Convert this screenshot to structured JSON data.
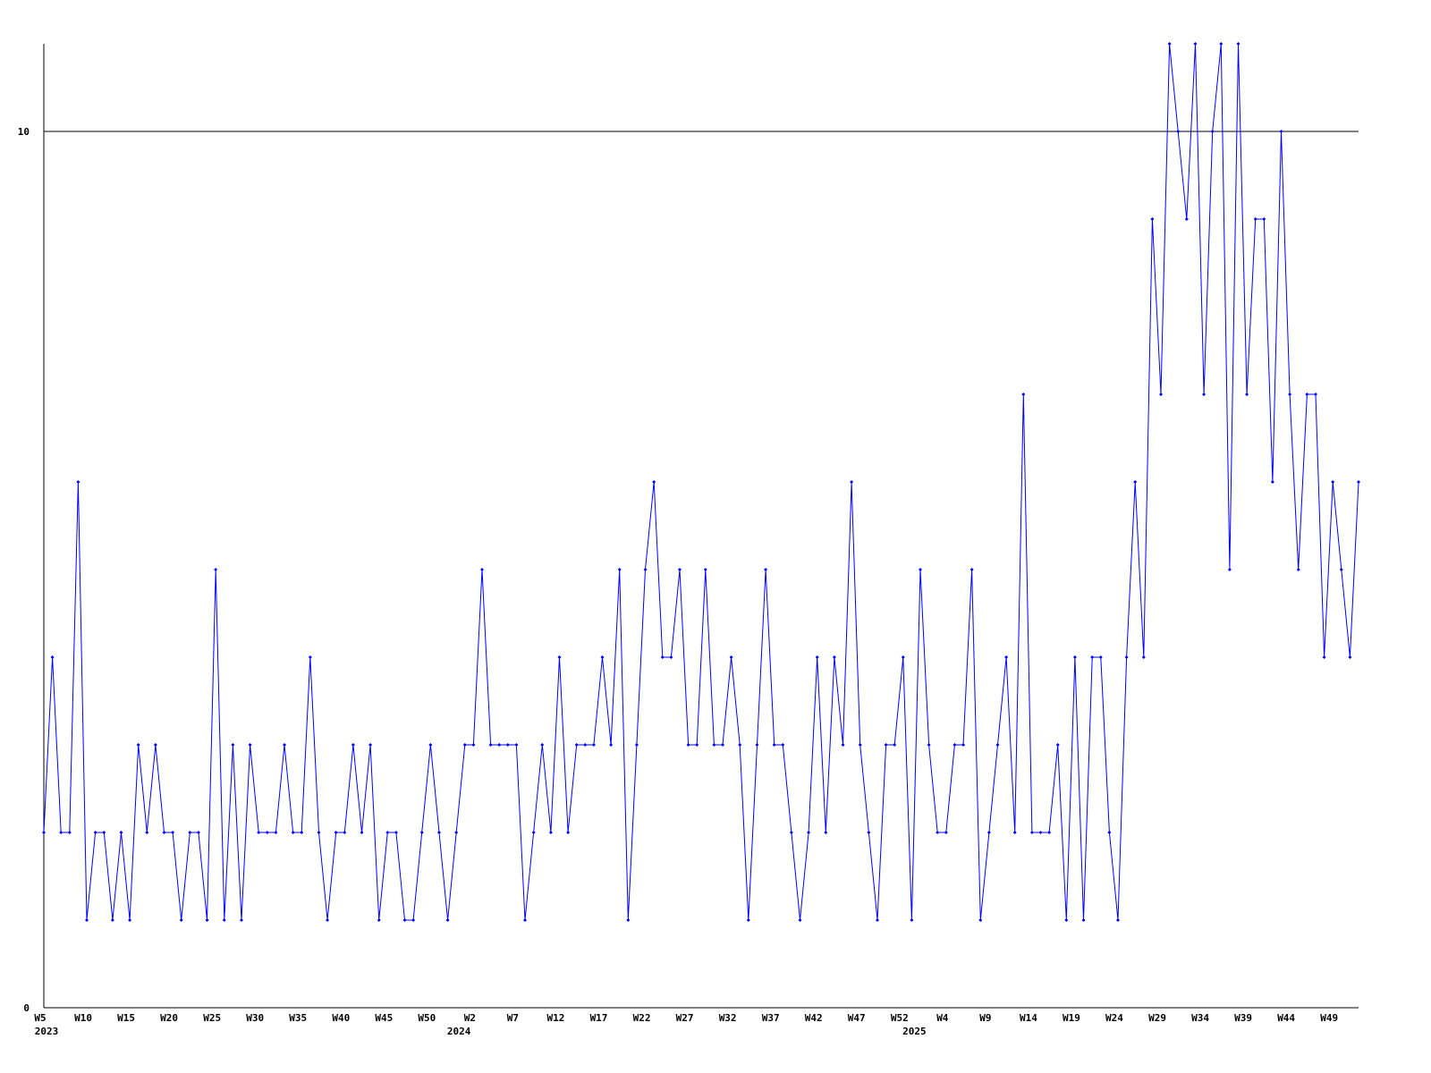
{
  "chart_data": {
    "type": "line",
    "title": "",
    "xlabel": "",
    "ylabel": "",
    "ylim": [
      0,
      11
    ],
    "grid": "horizontal line at 10",
    "line_color": "#0000ff",
    "y_ticks": [
      {
        "value": 0,
        "label": "0"
      },
      {
        "value": 10,
        "label": "10"
      }
    ],
    "x_ticks": [
      {
        "index": 0,
        "label": "W5"
      },
      {
        "index": 5,
        "label": "W10"
      },
      {
        "index": 10,
        "label": "W15"
      },
      {
        "index": 15,
        "label": "W20"
      },
      {
        "index": 20,
        "label": "W25"
      },
      {
        "index": 25,
        "label": "W30"
      },
      {
        "index": 30,
        "label": "W35"
      },
      {
        "index": 35,
        "label": "W40"
      },
      {
        "index": 40,
        "label": "W45"
      },
      {
        "index": 45,
        "label": "W50"
      },
      {
        "index": 50,
        "label": "W2"
      },
      {
        "index": 55,
        "label": "W7"
      },
      {
        "index": 60,
        "label": "W12"
      },
      {
        "index": 65,
        "label": "W17"
      },
      {
        "index": 70,
        "label": "W22"
      },
      {
        "index": 75,
        "label": "W27"
      },
      {
        "index": 80,
        "label": "W32"
      },
      {
        "index": 85,
        "label": "W37"
      },
      {
        "index": 90,
        "label": "W42"
      },
      {
        "index": 95,
        "label": "W47"
      },
      {
        "index": 100,
        "label": "W52"
      },
      {
        "index": 105,
        "label": "W4"
      },
      {
        "index": 110,
        "label": "W9"
      },
      {
        "index": 115,
        "label": "W14"
      },
      {
        "index": 120,
        "label": "W19"
      },
      {
        "index": 125,
        "label": "W24"
      },
      {
        "index": 130,
        "label": "W29"
      },
      {
        "index": 135,
        "label": "W34"
      },
      {
        "index": 140,
        "label": "W39"
      },
      {
        "index": 145,
        "label": "W44"
      },
      {
        "index": 150,
        "label": "W49"
      }
    ],
    "year_labels": [
      {
        "index": 0,
        "label": "2023"
      },
      {
        "index": 48,
        "label": "2024"
      },
      {
        "index": 101,
        "label": "2025"
      }
    ],
    "values": [
      2,
      4,
      2,
      2,
      6,
      1,
      2,
      2,
      1,
      2,
      1,
      3,
      2,
      3,
      2,
      2,
      1,
      2,
      2,
      1,
      5,
      1,
      3,
      1,
      3,
      2,
      2,
      2,
      3,
      2,
      2,
      4,
      2,
      1,
      2,
      2,
      3,
      2,
      3,
      1,
      2,
      2,
      1,
      1,
      2,
      3,
      2,
      1,
      2,
      3,
      3,
      5,
      3,
      3,
      3,
      3,
      1,
      2,
      3,
      2,
      4,
      2,
      3,
      3,
      3,
      4,
      3,
      5,
      1,
      3,
      5,
      6,
      4,
      4,
      5,
      3,
      3,
      5,
      3,
      3,
      4,
      3,
      1,
      3,
      5,
      3,
      3,
      2,
      1,
      2,
      4,
      2,
      4,
      3,
      6,
      3,
      2,
      1,
      3,
      3,
      4,
      1,
      5,
      3,
      2,
      2,
      3,
      3,
      5,
      1,
      2,
      3,
      4,
      2,
      7,
      2,
      2,
      2,
      3,
      1,
      4,
      1,
      4,
      4,
      2,
      1,
      4,
      6,
      4,
      9,
      7,
      11,
      10,
      9,
      11,
      7,
      10,
      11,
      5,
      11,
      7,
      9,
      9,
      6,
      10,
      7,
      5,
      7,
      7,
      4,
      6,
      5,
      4,
      6
    ]
  }
}
